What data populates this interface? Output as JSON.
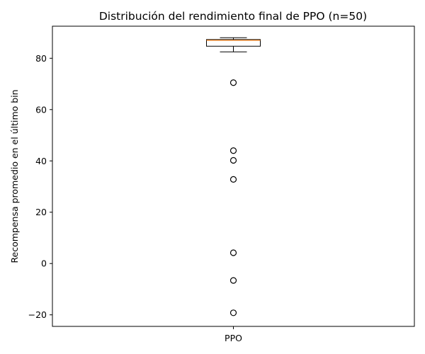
{
  "chart_data": {
    "type": "box",
    "title": "Distribución del rendimiento final de PPO (n=50)",
    "xlabel": "",
    "ylabel": "Recompensa promedio en el último bin",
    "categories": [
      "PPO"
    ],
    "ylim": [
      -24.5,
      92.5
    ],
    "yticks": [
      -20,
      0,
      20,
      40,
      60,
      80
    ],
    "ytick_labels": [
      "−20",
      "0",
      "20",
      "40",
      "60",
      "80"
    ],
    "grid": false,
    "legend": "none",
    "box": {
      "whisker_low": 82.5,
      "q1": 84.7,
      "median": 87.0,
      "q3": 87.3,
      "whisker_high": 88.0
    },
    "outliers": [
      70.5,
      44.0,
      40.2,
      32.8,
      4.2,
      -6.6,
      -19.2
    ],
    "colors": {
      "median": "#ff7f0e",
      "box": "#000000",
      "axes": "#000000"
    }
  }
}
